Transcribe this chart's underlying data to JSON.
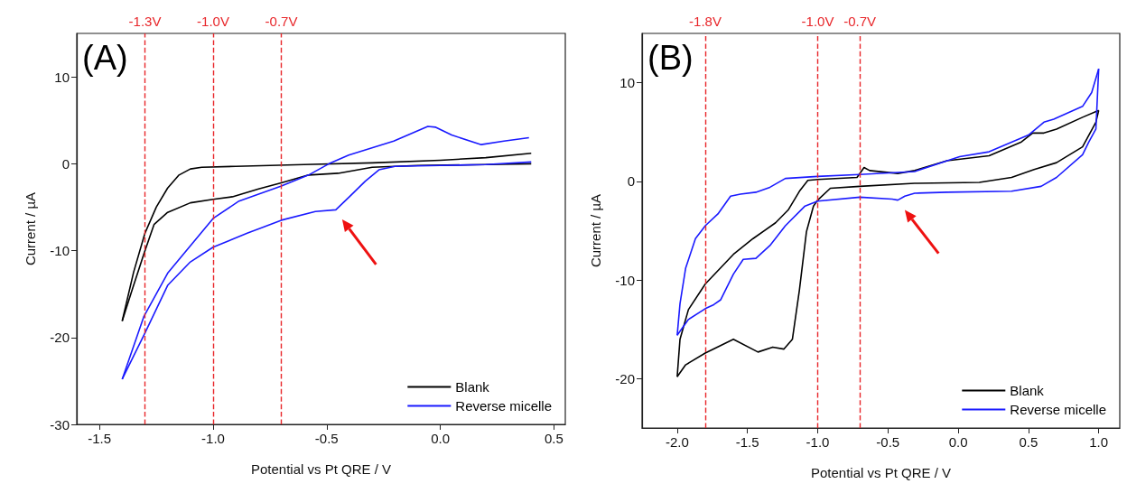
{
  "chart_data": [
    {
      "type": "line",
      "annotations": [
        "(A)"
      ],
      "xlabel": "Potential vs Pt QRE / V",
      "ylabel": "Current / µA",
      "xlim": [
        -1.6,
        0.55
      ],
      "ylim": [
        -30,
        15
      ],
      "xticks": [
        {
          "value": -1.5,
          "label": "-1.5"
        },
        {
          "value": -1,
          "label": "-1.0"
        },
        {
          "value": -0.5,
          "label": "-0.5"
        },
        {
          "value": 0,
          "label": "0.0"
        },
        {
          "value": 0.5,
          "label": "0.5"
        }
      ],
      "yticks": [
        -30,
        -20,
        -10,
        0,
        10
      ],
      "legend": "bottom right",
      "grid": false,
      "ref_lines": [
        {
          "axis": "x",
          "value": -1.3,
          "label": "-1.3V",
          "color": "#e8262a",
          "line_style": "dashed"
        },
        {
          "axis": "x",
          "value": -1,
          "label": "-1.0V",
          "color": "#e8262a",
          "line_style": "dashed"
        },
        {
          "axis": "x",
          "value": -0.7,
          "label": "-0.7V",
          "color": "#e8262a",
          "line_style": "dashed"
        }
      ],
      "series": [
        {
          "name": "Blank",
          "color": "#000000",
          "x": [
            0.4,
            0.2,
            0,
            -0.3,
            -0.6,
            -0.9,
            -1.05,
            -1.1,
            -1.15,
            -1.2,
            -1.25,
            -1.3,
            -1.35,
            -1.4
          ],
          "values": [
            1.2,
            0.7,
            0.4,
            0.1,
            -0.1,
            -0.3,
            -0.4,
            -0.6,
            -1.3,
            -2.8,
            -5,
            -8,
            -12.5,
            -18.1
          ]
        },
        {
          "color": "#000000",
          "x": [
            -1.4,
            -1.355,
            -1.305,
            -1.26,
            -1.2,
            -1.1,
            -1,
            -0.915,
            -0.8,
            -0.7,
            -0.58,
            -0.45,
            -0.3,
            -0.1,
            0.2,
            0.4
          ],
          "values": [
            -18.1,
            -14.4,
            -10.4,
            -7,
            -5.6,
            -4.5,
            -4.1,
            -3.8,
            -2.9,
            -2.2,
            -1.3,
            -1.1,
            -0.4,
            -0.2,
            -0.1,
            0
          ]
        },
        {
          "name": "Reverse micelle",
          "color": "#1a1aff",
          "x": [
            -1.4,
            -1.305,
            -1.2,
            -1,
            -0.886,
            -0.702,
            -0.58,
            -0.49,
            -0.403,
            -0.205,
            -0.055,
            -0.02,
            0.05,
            0.18,
            0.28,
            0.39
          ],
          "values": [
            -24.8,
            -17.6,
            -12.6,
            -6.3,
            -4.3,
            -2.6,
            -1.3,
            0,
            1,
            2.6,
            4.3,
            4.2,
            3.3,
            2.2,
            2.6,
            3
          ]
        },
        {
          "color": "#1a1aff",
          "x": [
            0.4,
            0.2,
            0,
            -0.2,
            -0.27,
            -0.33,
            -0.4,
            -0.46,
            -0.55,
            -0.7,
            -0.85,
            -1,
            -1.1,
            -1.2,
            -1.3,
            -1.4
          ],
          "values": [
            0.2,
            -0.1,
            -0.2,
            -0.3,
            -0.7,
            -2,
            -3.8,
            -5.3,
            -5.5,
            -6.5,
            -8,
            -9.6,
            -11.3,
            -14,
            -19.5,
            -24.8
          ]
        }
      ]
    },
    {
      "type": "line",
      "annotations": [
        "(B)"
      ],
      "xlabel": "Potential vs Pt QRE / V",
      "ylabel": "Current / µA",
      "xlim": [
        -2.25,
        1.15
      ],
      "ylim": [
        -25,
        15
      ],
      "xticks": [
        {
          "value": -2,
          "label": "-2.0"
        },
        {
          "value": -1.5,
          "label": "-1.5"
        },
        {
          "value": -1,
          "label": "-1.0"
        },
        {
          "value": -0.5,
          "label": "-0.5"
        },
        {
          "value": 0,
          "label": "0.0"
        },
        {
          "value": 0.5,
          "label": "0.5"
        },
        {
          "value": 1,
          "label": "1.0"
        }
      ],
      "yticks": [
        -20,
        -10,
        0,
        10
      ],
      "legend": "bottom right",
      "grid": false,
      "ref_lines": [
        {
          "axis": "x",
          "value": -1.8,
          "label": "-1.8V",
          "color": "#e8262a",
          "line_style": "dashed"
        },
        {
          "axis": "x",
          "value": -1,
          "label": "-1.0V",
          "color": "#e8262a",
          "line_style": "dashed"
        },
        {
          "axis": "x",
          "value": -0.7,
          "label": "-0.7V",
          "color": "#e8262a",
          "line_style": "dashed"
        }
      ],
      "series": [
        {
          "name": "Blank",
          "color": "#000000",
          "x": [
            -2,
            -1.94,
            -1.8,
            -1.6,
            -1.425,
            -1.32,
            -1.24,
            -1.18,
            -1.13,
            -1.08,
            -1.03,
            -1,
            -0.91,
            -0.7,
            -0.31,
            0.15,
            0.38,
            0.54,
            0.7,
            0.885,
            0.98,
            1
          ],
          "values": [
            -19.8,
            -18.6,
            -17.4,
            -16,
            -17.3,
            -16.8,
            -17,
            -16,
            -11,
            -5.1,
            -2.5,
            -1.9,
            -0.7,
            -0.5,
            -0.2,
            -0.1,
            0.4,
            1.2,
            1.9,
            3.5,
            6,
            7.2
          ]
        },
        {
          "color": "#000000",
          "x": [
            1,
            0.885,
            0.7,
            0.61,
            0.53,
            0.45,
            0.22,
            -0.08,
            -0.31,
            -0.43,
            -0.63,
            -0.67,
            -0.72,
            -1,
            -1.07,
            -1.13,
            -1.21,
            -1.3,
            -1.46,
            -1.6,
            -1.8,
            -1.92,
            -1.98,
            -2
          ],
          "values": [
            7.2,
            6.5,
            5.3,
            4.9,
            4.9,
            4,
            2.6,
            2.1,
            1.1,
            0.8,
            1.1,
            1.4,
            0.4,
            0.2,
            0.1,
            -1,
            -2.9,
            -4.2,
            -5.8,
            -7.4,
            -10.4,
            -13,
            -16,
            -19.8
          ]
        },
        {
          "name": "Reverse micelle",
          "color": "#1a1aff",
          "x": [
            -2,
            -1.98,
            -1.94,
            -1.87,
            -1.8,
            -1.71,
            -1.62,
            -1.55,
            -1.44,
            -1.34,
            -1.23,
            -1,
            -0.7,
            -0.31,
            0.01,
            0.22,
            0.5,
            0.61,
            0.68,
            0.885,
            0.95,
            1
          ],
          "values": [
            -15.6,
            -12.4,
            -8.8,
            -5.8,
            -4.5,
            -3.3,
            -1.5,
            -1.3,
            -1.1,
            -0.6,
            0.3,
            0.5,
            0.7,
            1,
            2.5,
            3,
            4.7,
            6,
            6.3,
            7.6,
            9,
            11.4
          ]
        },
        {
          "color": "#1a1aff",
          "x": [
            1,
            0.98,
            0.93,
            0.885,
            0.7,
            0.59,
            0.38,
            -0.08,
            -0.31,
            -0.38,
            -0.43,
            -0.47,
            -0.7,
            -1,
            -1.09,
            -1.23,
            -1.34,
            -1.44,
            -1.53,
            -1.6,
            -1.69,
            -1.74,
            -1.8,
            -1.92,
            -2
          ],
          "values": [
            11.4,
            5.3,
            4,
            2.7,
            0.4,
            -0.5,
            -1,
            -1.1,
            -1.2,
            -1.5,
            -1.9,
            -1.8,
            -1.6,
            -2,
            -2.5,
            -4.5,
            -6.5,
            -7.8,
            -7.9,
            -9.4,
            -12,
            -12.5,
            -12.9,
            -14,
            -15.6
          ]
        }
      ]
    }
  ]
}
